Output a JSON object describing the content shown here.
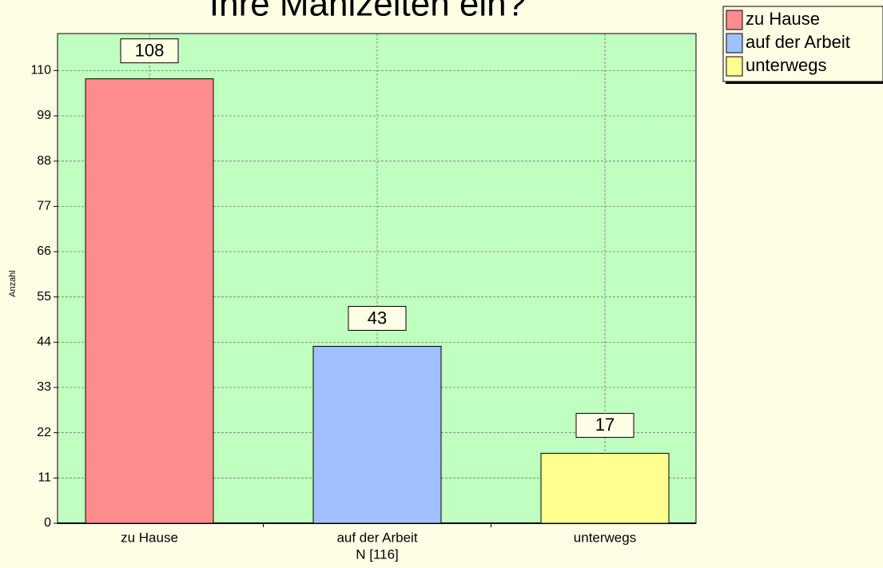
{
  "chart_data": {
    "type": "bar",
    "title": "Ihre Mahlzeiten ein?",
    "categories": [
      "zu Hause",
      "auf der Arbeit",
      "unterwegs"
    ],
    "values": [
      108,
      43,
      17
    ],
    "colors": [
      "#ff8c8c",
      "#a0c0ff",
      "#ffff90"
    ],
    "ylabel": "Anzahl",
    "xlabel": "N [116]",
    "ylim": [
      0,
      119
    ],
    "yticks": [
      0,
      11,
      22,
      33,
      44,
      55,
      66,
      77,
      88,
      99,
      110
    ],
    "grid": true,
    "legend": "top-right"
  }
}
